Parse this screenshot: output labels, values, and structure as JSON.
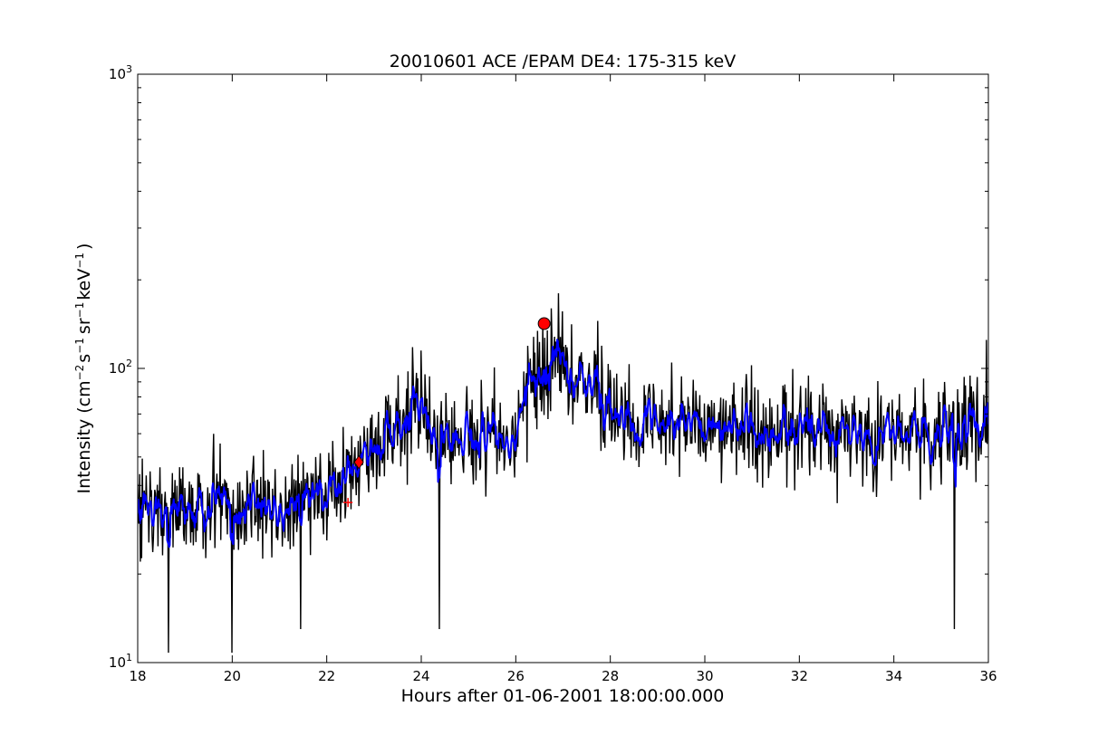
{
  "chart_data": {
    "type": "line",
    "title": "20010601 ACE /EPAM DE4: 175-315 keV",
    "xlabel": "Hours after 01-06-2001 18:00:00.000",
    "ylabel": {
      "prefix": "Intensity (cm",
      "exp1": "−2",
      "s": "s",
      "exp2": "−1",
      "sr": "sr",
      "exp3": "−1",
      "kev": "keV",
      "exp4": "−1",
      "suffix": ")"
    },
    "xlim": [
      18,
      36
    ],
    "ylim": [
      10,
      1000
    ],
    "y_scale": "log",
    "x_ticks": [
      "18",
      "20",
      "22",
      "24",
      "26",
      "28",
      "30",
      "32",
      "34",
      "36"
    ],
    "y_ticks": [
      {
        "value": 10,
        "base": "10",
        "exp": "1"
      },
      {
        "value": 100,
        "base": "10",
        "exp": "2"
      },
      {
        "value": 1000,
        "base": "10",
        "exp": "3"
      }
    ],
    "grid": false,
    "series": [
      {
        "color": "#000000",
        "style": "raw",
        "profile": [
          {
            "x": 18.0,
            "y": 34
          },
          {
            "x": 20.0,
            "y": 33
          },
          {
            "x": 21.0,
            "y": 35
          },
          {
            "x": 22.0,
            "y": 37
          },
          {
            "x": 22.7,
            "y": 45
          },
          {
            "x": 23.0,
            "y": 55
          },
          {
            "x": 23.5,
            "y": 62
          },
          {
            "x": 24.0,
            "y": 75
          },
          {
            "x": 24.3,
            "y": 55
          },
          {
            "x": 25.0,
            "y": 56
          },
          {
            "x": 26.0,
            "y": 58
          },
          {
            "x": 26.3,
            "y": 90
          },
          {
            "x": 26.9,
            "y": 105
          },
          {
            "x": 27.5,
            "y": 85
          },
          {
            "x": 28.5,
            "y": 68
          },
          {
            "x": 30.0,
            "y": 62
          },
          {
            "x": 32.0,
            "y": 62
          },
          {
            "x": 34.0,
            "y": 60
          },
          {
            "x": 36.0,
            "y": 60
          }
        ],
        "extremes": [
          {
            "x": 18.65,
            "y": 10.8
          },
          {
            "x": 20.0,
            "y": 10.8
          },
          {
            "x": 21.45,
            "y": 13
          },
          {
            "x": 24.38,
            "y": 13
          },
          {
            "x": 35.28,
            "y": 13
          },
          {
            "x": 26.9,
            "y": 180
          },
          {
            "x": 26.75,
            "y": 160
          },
          {
            "x": 24.0,
            "y": 115
          },
          {
            "x": 35.96,
            "y": 125
          }
        ]
      },
      {
        "color": "#0000ff",
        "style": "smoothed"
      }
    ],
    "markers": [
      {
        "x": 22.68,
        "y": 48,
        "shape": "diamond",
        "color": "#ff0000"
      },
      {
        "x": 22.45,
        "y": 35,
        "shape": "plus",
        "color": "#ff0000"
      },
      {
        "x": 26.6,
        "y": 142,
        "shape": "circle",
        "color": "#ff0000"
      }
    ]
  }
}
